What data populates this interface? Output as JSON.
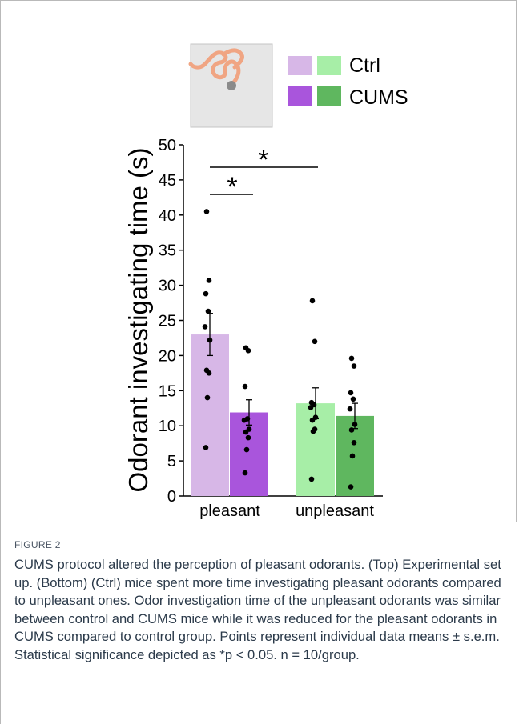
{
  "colors": {
    "ctrl_pleasant": "#d7b7e7",
    "cums_pleasant": "#a955dc",
    "ctrl_unpleasant": "#a7eea7",
    "cums_unpleasant": "#5fb75f",
    "points": "#000000",
    "setup_box": "#e6e6e6",
    "mouse": "#f0a583"
  },
  "icons": [
    "mouse-icon",
    "arena-icon"
  ],
  "legend": {
    "ctrl_label": "Ctrl",
    "cums_label": "CUMS"
  },
  "significance": [
    "*",
    "*"
  ],
  "chart_data": {
    "type": "bar",
    "categories": [
      "pleasant",
      "unpleasant"
    ],
    "ylabel": "Odorant investigating time (s)",
    "xlabel": "",
    "ylim": [
      0,
      50
    ],
    "yticks": [
      0,
      5,
      10,
      15,
      20,
      25,
      30,
      35,
      40,
      45,
      50
    ],
    "series": [
      {
        "name": "Ctrl",
        "values": [
          23,
          13.2
        ],
        "sem": [
          3.0,
          2.2
        ],
        "points": [
          [
            40.5,
            30.7,
            28.8,
            26.3,
            24.1,
            22.2,
            17.9,
            17.5,
            14.0,
            6.9
          ],
          [
            27.8,
            22.0,
            13.3,
            13.0,
            12.6,
            11.2,
            10.8,
            9.5,
            9.2,
            2.4
          ]
        ]
      },
      {
        "name": "CUMS",
        "values": [
          11.9,
          11.4
        ],
        "sem": [
          1.8,
          1.8
        ],
        "points": [
          [
            21.1,
            20.7,
            15.6,
            11.0,
            10.8,
            9.5,
            9.1,
            8.3,
            6.6,
            3.3
          ],
          [
            19.6,
            18.5,
            14.7,
            13.8,
            12.4,
            10.2,
            9.4,
            7.6,
            5.7,
            1.3
          ]
        ]
      }
    ],
    "comparisons": [
      {
        "label": "*",
        "groups": [
          "pleasant Ctrl",
          "pleasant CUMS"
        ]
      },
      {
        "label": "*",
        "groups": [
          "pleasant Ctrl",
          "unpleasant Ctrl"
        ]
      }
    ]
  },
  "caption": {
    "label": "FIGURE 2",
    "text": "CUMS protocol altered the perception of pleasant odorants. (Top) Experimental set up. (Bottom) (Ctrl) mice spent more time investigating pleasant odorants compared to unpleasant ones. Odor investigation time of the unpleasant odorants was similar between control and CUMS mice while it was reduced for the pleasant odorants in CUMS compared to control group. Points represent individual data means ± s.e.m. Statistical significance depicted as *p < 0.05. n = 10/group."
  }
}
